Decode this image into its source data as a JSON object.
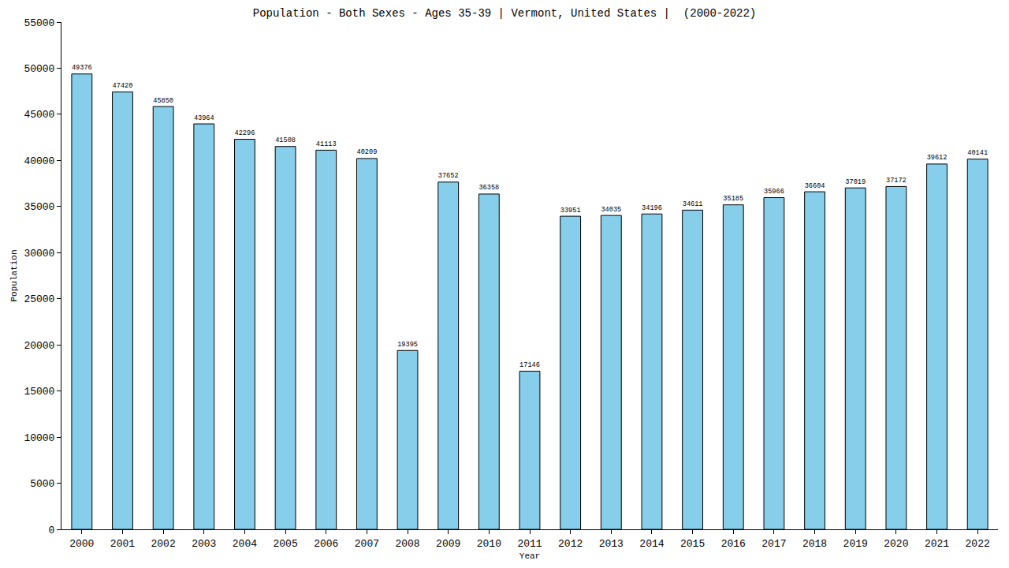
{
  "chart_data": {
    "type": "bar",
    "title": "Population - Both Sexes - Ages 35-39 | Vermont, United States |  (2000-2022)",
    "x_label": "Year",
    "y_label": "Population",
    "categories": [
      "2000",
      "2001",
      "2002",
      "2003",
      "2004",
      "2005",
      "2006",
      "2007",
      "2008",
      "2009",
      "2010",
      "2011",
      "2012",
      "2013",
      "2014",
      "2015",
      "2016",
      "2017",
      "2018",
      "2019",
      "2020",
      "2021",
      "2022"
    ],
    "values": [
      49376,
      47420,
      45850,
      43964,
      42296,
      41508,
      41113,
      40209,
      19395,
      37652,
      36358,
      17146,
      33951,
      34035,
      34196,
      34611,
      35185,
      35966,
      36604,
      37019,
      37172,
      39612,
      40141
    ],
    "color": "#87ceeb",
    "ylim": [
      0,
      55000
    ],
    "yticks": [
      0,
      5000,
      10000,
      15000,
      20000,
      25000,
      30000,
      35000,
      40000,
      45000,
      50000,
      55000
    ],
    "grid": false,
    "data_labels": true
  }
}
